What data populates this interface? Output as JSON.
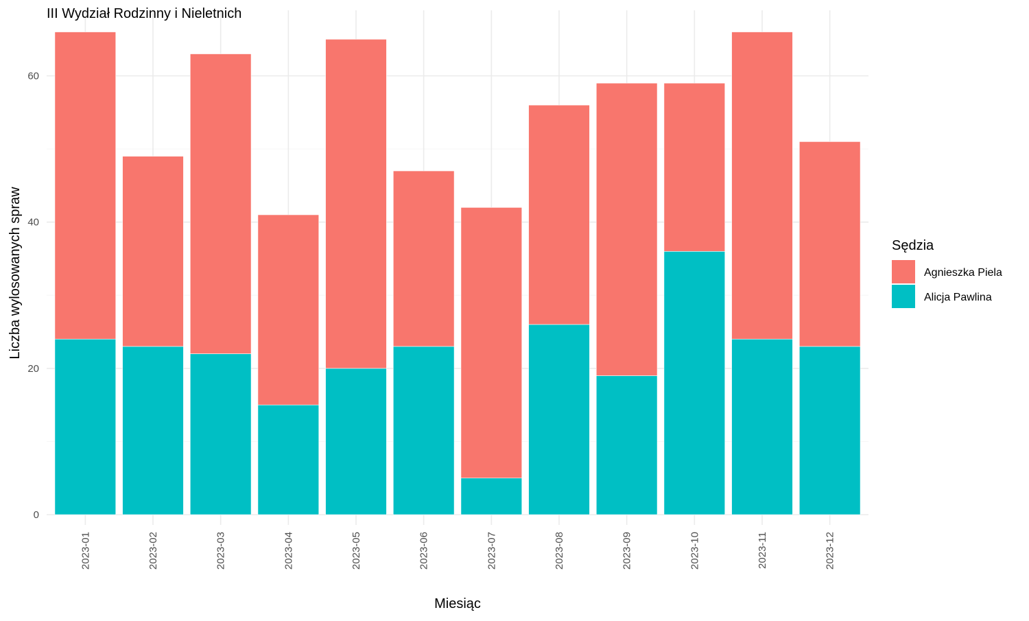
{
  "chart_data": {
    "type": "bar",
    "stacked": true,
    "title": "III Wydział Rodzinny i Nieletnich",
    "xlabel": "Miesiąc",
    "ylabel": "Liczba wylosowanych spraw",
    "categories": [
      "2023-01",
      "2023-02",
      "2023-03",
      "2023-04",
      "2023-05",
      "2023-06",
      "2023-07",
      "2023-08",
      "2023-09",
      "2023-10",
      "2023-11",
      "2023-12"
    ],
    "series": [
      {
        "name": "Alicja Pawlina",
        "color": "#00BFC4",
        "values": [
          24,
          23,
          22,
          15,
          20,
          23,
          5,
          26,
          19,
          36,
          24,
          23
        ]
      },
      {
        "name": "Agnieszka Piela",
        "color": "#F8766D",
        "values": [
          42,
          26,
          41,
          26,
          45,
          24,
          37,
          30,
          40,
          23,
          42,
          28
        ]
      }
    ],
    "yticks": [
      0,
      20,
      40,
      60
    ],
    "ylim": [
      0,
      66
    ],
    "grid": true,
    "legend": {
      "title": "Sędzia",
      "position": "right",
      "entries": [
        {
          "label": "Agnieszka Piela",
          "color": "#F8766D"
        },
        {
          "label": "Alicja Pawlina",
          "color": "#00BFC4"
        }
      ]
    }
  }
}
